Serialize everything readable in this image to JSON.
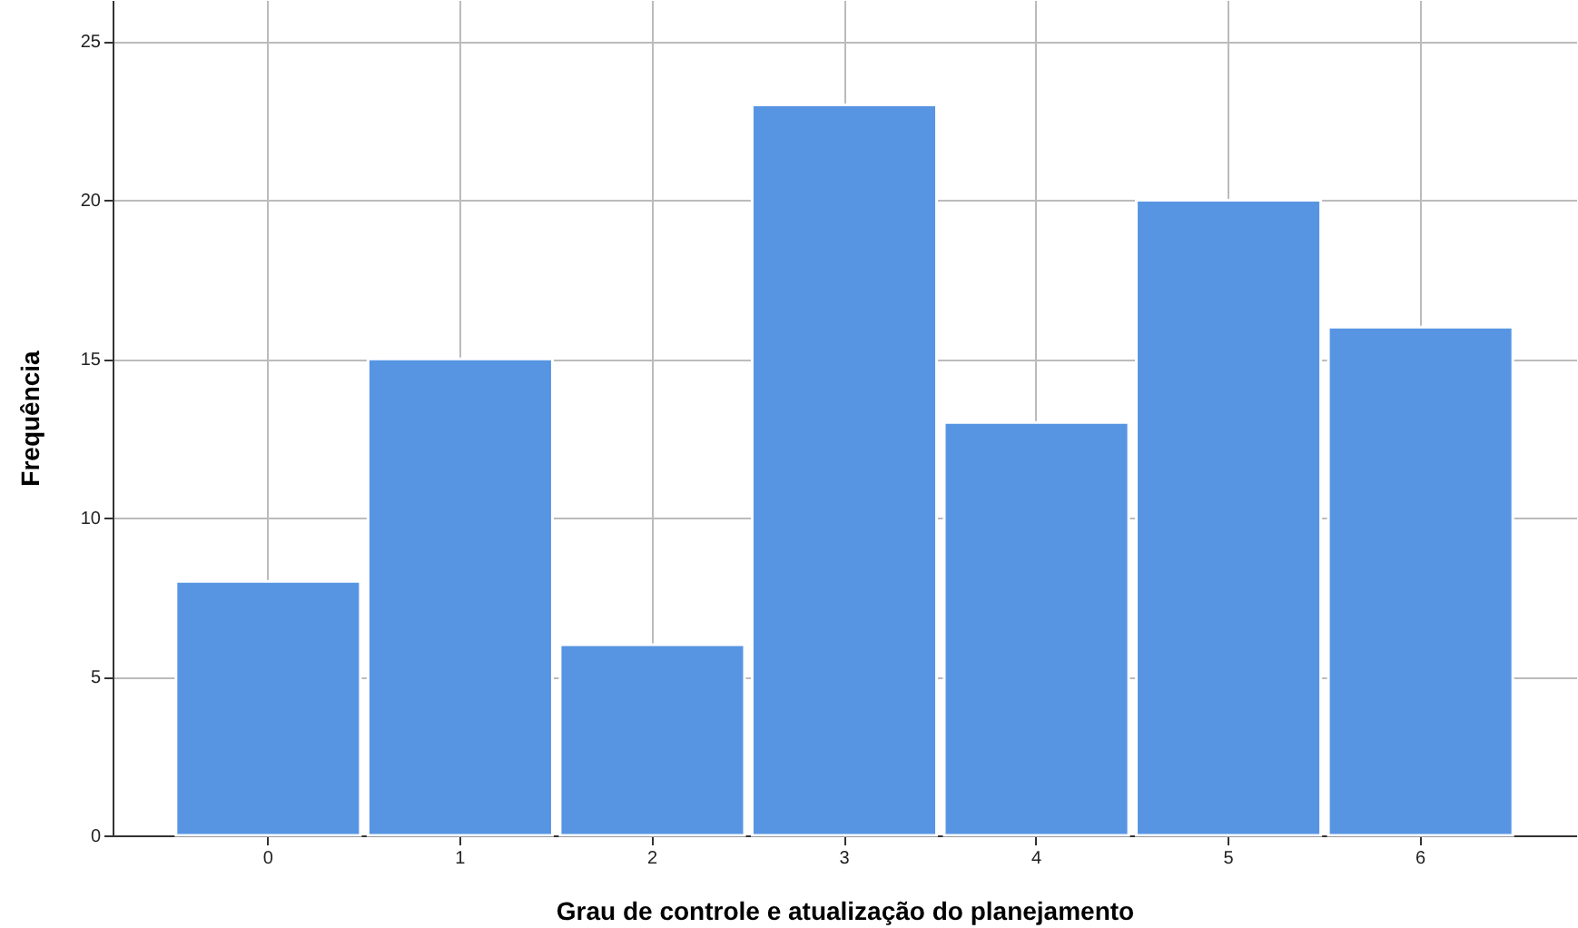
{
  "chart_data": {
    "type": "bar",
    "xlabel": "Grau de controle e atualização do planejamento",
    "ylabel": "Frequência",
    "categories": [
      "0",
      "1",
      "2",
      "3",
      "4",
      "5",
      "6"
    ],
    "values": [
      8,
      15,
      6,
      23,
      13,
      20,
      16
    ],
    "color": "#5795e3",
    "ylim": [
      0,
      26.3
    ],
    "yticks": [
      0,
      5,
      10,
      15,
      20,
      25
    ],
    "grid": true
  }
}
